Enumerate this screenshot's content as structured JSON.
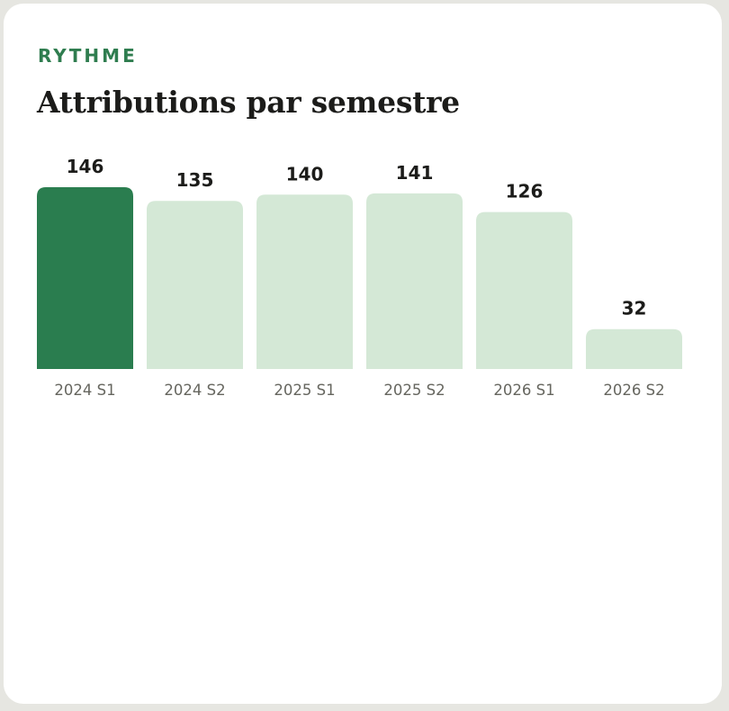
{
  "card": {
    "eyebrow": "RYTHME",
    "title": "Attributions par semestre"
  },
  "colors": {
    "accent": "#2a7d4f",
    "bar_highlight": "#2a7d4f",
    "bar_default": "#d4e8d6",
    "eyebrow": "#2f7d4f"
  },
  "chart_data": {
    "type": "bar",
    "title": "Attributions par semestre",
    "categories": [
      "2024 S1",
      "2024 S2",
      "2025 S1",
      "2025 S2",
      "2026 S1",
      "2026 S2"
    ],
    "values": [
      146,
      135,
      140,
      141,
      126,
      32
    ],
    "highlight_index": 0,
    "xlabel": "",
    "ylabel": "",
    "grid": false,
    "legend": "none"
  }
}
